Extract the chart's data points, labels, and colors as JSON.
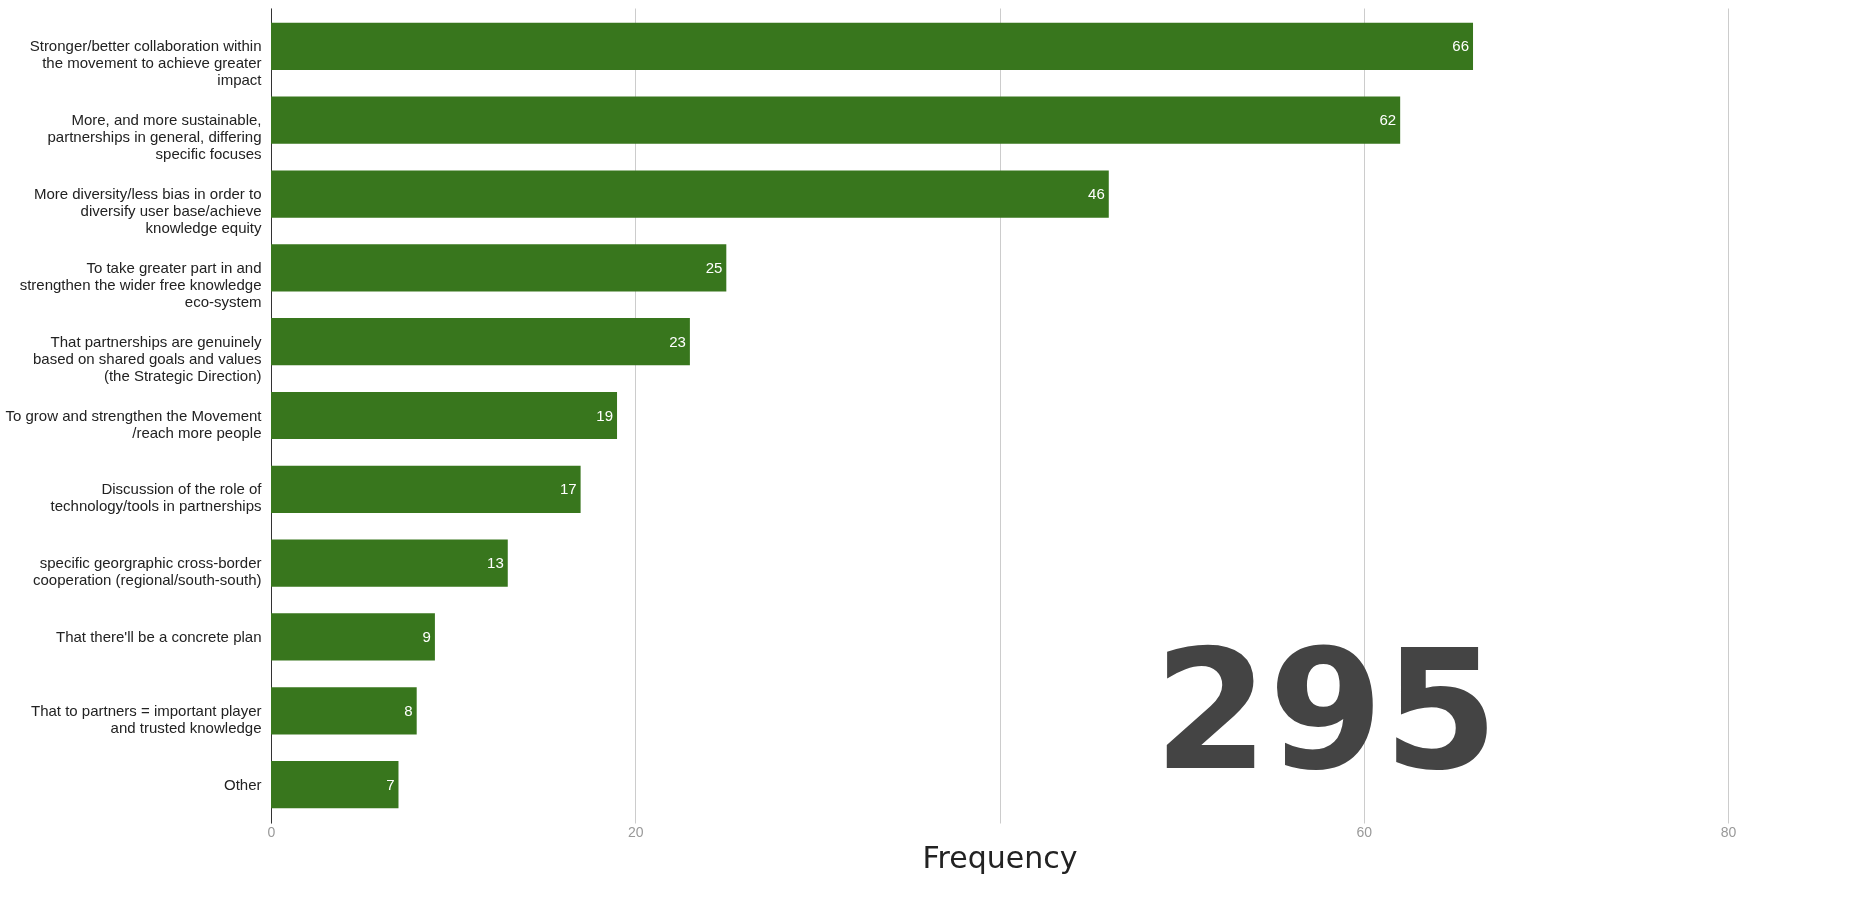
{
  "chart_data": {
    "type": "bar",
    "orientation": "horizontal",
    "xlabel": "Frequency",
    "categories": [
      "Stronger/better collaboration within the movement to achieve greater impact",
      "More, and more sustainable, partnerships in general, differing specific focuses",
      "More diversity/less bias in order to diversify user base/achieve knowledge equity",
      "To take greater part in and strengthen the wider free knowledge eco-system",
      "That partnerships are genuinely based on shared goals and values (the Strategic Direction)",
      "To grow and strengthen the Movement /reach more people",
      "Discussion of the role of technology/tools in partnerships",
      "specific georgraphic cross-border cooperation (regional/south-south)",
      "That there'll be a concrete plan",
      "That to partners = important player and trusted knowledge",
      "Other"
    ],
    "values": [
      66,
      62,
      46,
      25,
      23,
      19,
      17,
      13,
      9,
      8,
      7
    ],
    "color": "#38761d",
    "data_labels": true,
    "xlim": [
      0,
      80
    ],
    "xticks": [
      0,
      20,
      {
        "value": 40,
        "label": null
      },
      60,
      80
    ],
    "grid": "x",
    "annotations": [
      "295"
    ]
  }
}
